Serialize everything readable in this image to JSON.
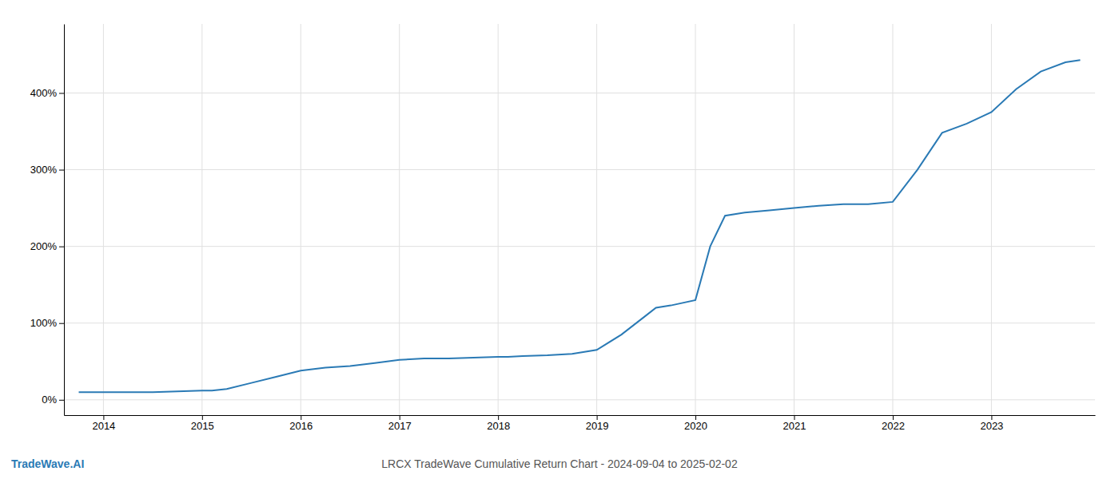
{
  "chart_data": {
    "type": "line",
    "title": "LRCX TradeWave Cumulative Return Chart - 2024-09-04 to 2025-02-02",
    "annotations": [
      "TradeWave.AI"
    ],
    "color": "#2a7ab5",
    "x": [
      2013.75,
      2014.0,
      2014.25,
      2014.5,
      2014.75,
      2015.0,
      2015.1,
      2015.25,
      2015.5,
      2015.75,
      2016.0,
      2016.25,
      2016.5,
      2016.75,
      2017.0,
      2017.25,
      2017.5,
      2017.75,
      2018.0,
      2018.1,
      2018.25,
      2018.5,
      2018.75,
      2019.0,
      2019.25,
      2019.5,
      2019.6,
      2019.75,
      2020.0,
      2020.15,
      2020.3,
      2020.5,
      2020.75,
      2021.0,
      2021.25,
      2021.5,
      2021.75,
      2022.0,
      2022.25,
      2022.5,
      2022.75,
      2023.0,
      2023.25,
      2023.5,
      2023.75,
      2023.9
    ],
    "values": [
      10,
      10,
      10,
      10,
      11,
      12,
      12,
      14,
      22,
      30,
      38,
      42,
      44,
      48,
      52,
      54,
      54,
      55,
      56,
      56,
      57,
      58,
      60,
      65,
      85,
      110,
      120,
      123,
      130,
      200,
      240,
      244,
      247,
      250,
      253,
      255,
      255,
      258,
      300,
      348,
      360,
      375,
      405,
      428,
      440,
      443
    ],
    "xlim": [
      2013.6,
      2024.05
    ],
    "xticks": [
      2014,
      2015,
      2016,
      2017,
      2018,
      2019,
      2020,
      2021,
      2022,
      2023
    ],
    "ylim": [
      -20,
      490
    ],
    "yticks": [
      {
        "value": 0,
        "label": "0%"
      },
      {
        "value": 100,
        "label": "100%"
      },
      {
        "value": 200,
        "label": "200%"
      },
      {
        "value": 300,
        "label": "300%"
      },
      {
        "value": 400,
        "label": "400%"
      }
    ],
    "grid": true
  }
}
